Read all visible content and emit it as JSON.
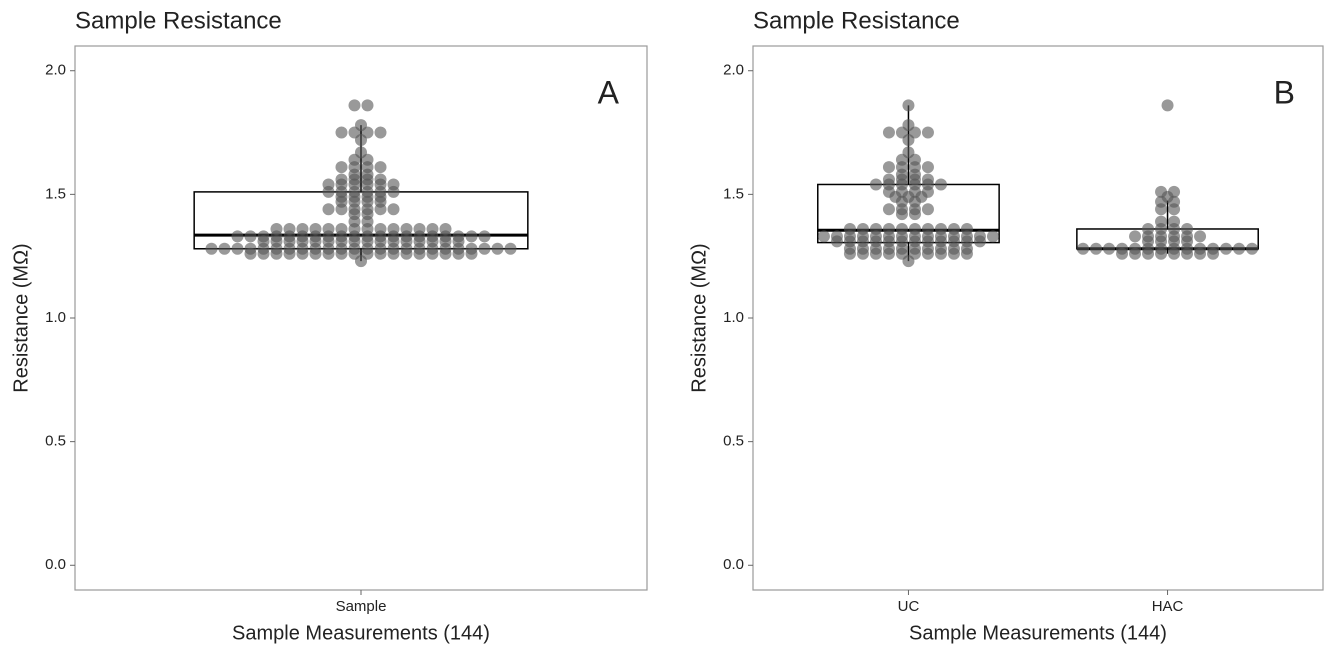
{
  "chart_data": [
    {
      "type": "box",
      "title": "Sample Resistance",
      "panel_label": "A",
      "x_label": "Sample Measurements (144)",
      "y_label": "Resistance (MΩ)",
      "categories": [
        "Sample"
      ],
      "boxes": [
        {
          "whislo": 1.23,
          "q1": 1.28,
          "median": 1.335,
          "q3": 1.51,
          "whishi": 1.78
        }
      ],
      "points": [
        [
          1.23,
          1.26,
          1.26,
          1.26,
          1.26,
          1.26,
          1.26,
          1.26,
          1.26,
          1.26,
          1.26,
          1.26,
          1.26,
          1.26,
          1.26,
          1.26,
          1.26,
          1.26,
          1.26,
          1.28,
          1.28,
          1.28,
          1.28,
          1.28,
          1.28,
          1.28,
          1.28,
          1.28,
          1.28,
          1.28,
          1.28,
          1.28,
          1.28,
          1.28,
          1.28,
          1.28,
          1.28,
          1.28,
          1.28,
          1.28,
          1.28,
          1.28,
          1.28,
          1.31,
          1.31,
          1.31,
          1.31,
          1.31,
          1.31,
          1.31,
          1.31,
          1.31,
          1.31,
          1.31,
          1.31,
          1.31,
          1.31,
          1.31,
          1.31,
          1.33,
          1.33,
          1.33,
          1.33,
          1.33,
          1.33,
          1.33,
          1.33,
          1.33,
          1.33,
          1.33,
          1.33,
          1.33,
          1.33,
          1.33,
          1.33,
          1.33,
          1.33,
          1.33,
          1.33,
          1.36,
          1.36,
          1.36,
          1.36,
          1.36,
          1.36,
          1.36,
          1.36,
          1.36,
          1.36,
          1.36,
          1.36,
          1.36,
          1.36,
          1.39,
          1.39,
          1.42,
          1.42,
          1.44,
          1.44,
          1.44,
          1.44,
          1.44,
          1.44,
          1.47,
          1.47,
          1.47,
          1.47,
          1.49,
          1.49,
          1.49,
          1.49,
          1.51,
          1.51,
          1.51,
          1.51,
          1.51,
          1.51,
          1.54,
          1.54,
          1.54,
          1.54,
          1.54,
          1.54,
          1.56,
          1.56,
          1.56,
          1.56,
          1.58,
          1.58,
          1.61,
          1.61,
          1.61,
          1.61,
          1.64,
          1.64,
          1.67,
          1.72,
          1.75,
          1.75,
          1.75,
          1.75,
          1.78,
          1.86,
          1.86
        ]
      ],
      "point_color": "#555555",
      "box_color": "#000000",
      "ylim": [
        -0.1,
        2.1
      ],
      "yticks": [
        {
          "value": 0,
          "label": "0.0"
        },
        0.5,
        {
          "value": 1,
          "label": "1.0"
        },
        1.5,
        {
          "value": 2,
          "label": "2.0"
        }
      ]
    },
    {
      "type": "box",
      "title": "Sample Resistance",
      "panel_label": "B",
      "x_label": "Sample Measurements (144)",
      "y_label": "Resistance (MΩ)",
      "categories": [
        "UC",
        "HAC"
      ],
      "boxes": [
        {
          "whislo": 1.23,
          "q1": 1.305,
          "median": 1.355,
          "q3": 1.54,
          "whishi": 1.86
        },
        {
          "whislo": 1.26,
          "q1": 1.28,
          "median": 1.28,
          "q3": 1.36,
          "whishi": 1.475
        }
      ],
      "points": [
        [
          1.23,
          1.26,
          1.26,
          1.26,
          1.26,
          1.26,
          1.26,
          1.26,
          1.26,
          1.26,
          1.26,
          1.28,
          1.28,
          1.28,
          1.28,
          1.28,
          1.28,
          1.28,
          1.28,
          1.28,
          1.28,
          1.31,
          1.31,
          1.31,
          1.31,
          1.31,
          1.31,
          1.31,
          1.31,
          1.31,
          1.31,
          1.31,
          1.31,
          1.33,
          1.33,
          1.33,
          1.33,
          1.33,
          1.33,
          1.33,
          1.33,
          1.33,
          1.33,
          1.33,
          1.33,
          1.33,
          1.33,
          1.36,
          1.36,
          1.36,
          1.36,
          1.36,
          1.36,
          1.36,
          1.36,
          1.36,
          1.36,
          1.42,
          1.42,
          1.44,
          1.44,
          1.44,
          1.44,
          1.47,
          1.47,
          1.49,
          1.49,
          1.49,
          1.51,
          1.51,
          1.51,
          1.51,
          1.54,
          1.54,
          1.54,
          1.54,
          1.54,
          1.54,
          1.56,
          1.56,
          1.56,
          1.56,
          1.58,
          1.58,
          1.61,
          1.61,
          1.61,
          1.61,
          1.64,
          1.64,
          1.67,
          1.72,
          1.75,
          1.75,
          1.75,
          1.75,
          1.78,
          1.86
        ],
        [
          1.26,
          1.26,
          1.26,
          1.26,
          1.26,
          1.26,
          1.26,
          1.26,
          1.28,
          1.28,
          1.28,
          1.28,
          1.28,
          1.28,
          1.28,
          1.28,
          1.28,
          1.28,
          1.28,
          1.28,
          1.28,
          1.28,
          1.31,
          1.31,
          1.31,
          1.31,
          1.33,
          1.33,
          1.33,
          1.33,
          1.33,
          1.33,
          1.36,
          1.36,
          1.36,
          1.36,
          1.39,
          1.39,
          1.44,
          1.44,
          1.47,
          1.47,
          1.49,
          1.51,
          1.51,
          1.86
        ]
      ],
      "point_color": "#555555",
      "box_color": "#000000",
      "ylim": [
        -0.1,
        2.1
      ],
      "yticks": [
        {
          "value": 0,
          "label": "0.0"
        },
        0.5,
        {
          "value": 1,
          "label": "1.0"
        },
        1.5,
        {
          "value": 2,
          "label": "2.0"
        }
      ]
    }
  ]
}
